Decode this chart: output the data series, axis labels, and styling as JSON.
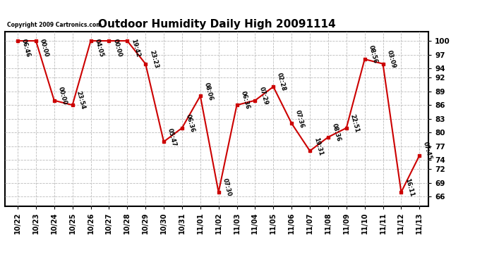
{
  "title": "Outdoor Humidity Daily High 20091114",
  "copyright_text": "Copyright 2009 Cartronics.com",
  "x_labels": [
    "10/22",
    "10/23",
    "10/24",
    "10/25",
    "10/26",
    "10/27",
    "10/28",
    "10/29",
    "10/30",
    "10/31",
    "11/01",
    "11/02",
    "11/03",
    "11/04",
    "11/05",
    "11/06",
    "11/07",
    "11/08",
    "11/09",
    "11/10",
    "11/11",
    "11/12",
    "11/13"
  ],
  "y_values": [
    100,
    100,
    87,
    86,
    100,
    100,
    100,
    95,
    78,
    81,
    88,
    67,
    86,
    87,
    90,
    82,
    76,
    79,
    81,
    96,
    95,
    67,
    75
  ],
  "time_labels": [
    "06:46",
    "00:00",
    "00:00",
    "23:54",
    "04:05",
    "00:00",
    "19:42",
    "23:23",
    "05:47",
    "06:36",
    "08:06",
    "07:30",
    "06:36",
    "07:29",
    "02:28",
    "07:36",
    "19:31",
    "08:36",
    "22:51",
    "08:56",
    "03:09",
    "16:11",
    "07:45"
  ],
  "line_color": "#cc0000",
  "marker_color": "#cc0000",
  "bg_color": "#ffffff",
  "grid_color": "#bbbbbb",
  "y_tick_values": [
    66,
    69,
    72,
    74,
    77,
    80,
    83,
    86,
    89,
    92,
    94,
    97,
    100
  ],
  "ylim": [
    64,
    102
  ],
  "xlim": [
    -0.7,
    22.5
  ]
}
